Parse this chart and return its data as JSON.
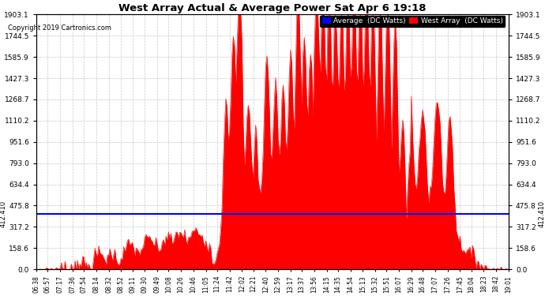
{
  "title": "West Array Actual & Average Power Sat Apr 6 19:18",
  "copyright": "Copyright 2019 Cartronics.com",
  "legend_labels": [
    "Average  (DC Watts)",
    "West Array  (DC Watts)"
  ],
  "legend_colors": [
    "#0000ff",
    "#ff0000"
  ],
  "average_value": 412.41,
  "y_tick_labels": [
    "0.0",
    "158.6",
    "317.2",
    "475.8",
    "634.4",
    "793.0",
    "951.6",
    "1110.2",
    "1268.7",
    "1427.3",
    "1585.9",
    "1744.5",
    "1903.1"
  ],
  "y_tick_values": [
    0.0,
    158.6,
    317.2,
    475.8,
    634.4,
    793.0,
    951.6,
    1110.2,
    1268.7,
    1427.3,
    1585.9,
    1744.5,
    1903.1
  ],
  "ymin": 0.0,
  "ymax": 1903.1,
  "background_color": "#ffffff",
  "plot_bg_color": "#ffffff",
  "fill_color": "#ff0000",
  "avg_line_color": "#0000ff",
  "grid_color": "#c8c8c8",
  "x_labels": [
    "06:38",
    "06:57",
    "07:17",
    "07:36",
    "07:54",
    "08:14",
    "08:32",
    "08:52",
    "09:11",
    "09:30",
    "09:49",
    "10:08",
    "10:26",
    "10:46",
    "11:05",
    "11:24",
    "11:42",
    "12:02",
    "12:21",
    "12:40",
    "12:59",
    "13:17",
    "13:37",
    "13:56",
    "14:15",
    "14:35",
    "14:54",
    "15:13",
    "15:32",
    "15:51",
    "16:07",
    "16:29",
    "16:48",
    "17:07",
    "17:26",
    "17:45",
    "18:04",
    "18:23",
    "18:42",
    "19:01"
  ],
  "n_points": 380,
  "avg_label": "412.410"
}
